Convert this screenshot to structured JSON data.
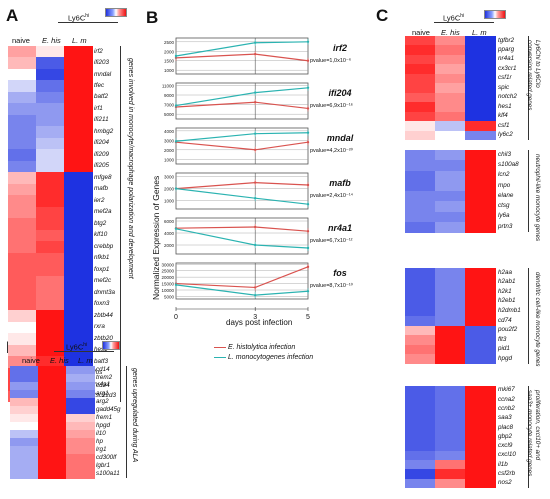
{
  "panels": {
    "A": {
      "label": "A",
      "header_group": "Ly6C",
      "header_group_sup": "hi",
      "columns": [
        "naive",
        "E. his",
        "L. m"
      ],
      "genes": [
        "irf2",
        "ifi203",
        "mndal",
        "tfec",
        "batf2",
        "irf1",
        "ifi211",
        "hmbg2",
        "ifi204",
        "ifi209",
        "ifi205",
        "mfge8",
        "mafb",
        "ier2",
        "mef2a",
        "btg2",
        "klf10",
        "crebbp",
        "nfkb1",
        "foxp1",
        "mef2c",
        "dnmt3a",
        "foxn3",
        "zbtb44",
        "rxra",
        "zbtb20",
        "hes1",
        "batf3",
        "fos",
        "nr4a1",
        "tsc22d3"
      ],
      "annotation": "genes involved in monocyte/macrophage polarization and development"
    },
    "B": {
      "label": "B",
      "y_axis_label": "Normalized Expression of Genes",
      "x_axis_label": "days post infection",
      "legend": [
        "E. histolytica infection",
        "L. monocytogenes infection"
      ]
    },
    "C": {
      "label": "C",
      "header_group": "Ly6C",
      "header_group_sup": "hi",
      "columns": [
        "naive",
        "E. his",
        "L. m"
      ],
      "blocks": [
        {
          "genes": [
            "tgfbr2",
            "pparg",
            "nr4a1",
            "cx3cr1",
            "csf1r",
            "spic",
            "notch2",
            "hes1",
            "klf4",
            "csf1",
            "ly6c2"
          ],
          "annotation_lines": [
            "Ly6Chi to Ly6Clo",
            "conversion related genes"
          ]
        },
        {
          "genes": [
            "chil3",
            "s100a8",
            "lcn2",
            "mpo",
            "elane",
            "ctsg",
            "ly6a",
            "prtn3"
          ],
          "annotation_lines": [
            "neutrophil-like monocyte genes"
          ]
        },
        {
          "genes": [
            "h2aa",
            "h2ab1",
            "h2k1",
            "h2eb1",
            "h2dmb1",
            "cd74",
            "pou2f2",
            "flt3",
            "pid1",
            "hpgd"
          ],
          "annotation_lines": [
            "dendritic cell-like monocyte genes"
          ]
        },
        {
          "genes": [
            "mki67",
            "ccna2",
            "ccnb2",
            "saa3",
            "plac8",
            "gbp2",
            "cxcl9",
            "cxcl10",
            "il1b",
            "csf2rb",
            "nos2"
          ],
          "annotation_lines": [
            "proliferation, cxcl10+ and",
            "saa3+ monocyte related genes"
          ]
        }
      ]
    },
    "D": {
      "label": "D",
      "header_group": "Ly6C",
      "header_group_sup": "hi",
      "columns": [
        "naive",
        "E. his",
        "L. m"
      ],
      "genes": [
        "cd14",
        "trem2",
        "cd24",
        "arg1",
        "arg2",
        "gadd45g",
        "frem1",
        "hpgd",
        "il10",
        "hp",
        "lrg1",
        "cd300lf",
        "lgbr1",
        "s100a11"
      ],
      "annotation": "genes upregulated during ALA"
    }
  },
  "chart_data": [
    {
      "type": "line",
      "gene": "irf2",
      "pvalue_label": "pvalue=1,0x10⁻⁶",
      "x": [
        0,
        3,
        5
      ],
      "yticks": [
        1000,
        1500,
        2000,
        2500
      ],
      "ylim": [
        800,
        2700
      ],
      "series": [
        {
          "name": "E. histolytica infection",
          "color": "#d9534f",
          "values": [
            1650,
            1850,
            1500
          ]
        },
        {
          "name": "L. monocytogenes infection",
          "color": "#2bb3b1",
          "values": [
            1750,
            2450,
            2500
          ]
        }
      ]
    },
    {
      "type": "line",
      "gene": "ifi204",
      "pvalue_label": "pvalue=6,9x10⁻¹⁶",
      "x": [
        0,
        3,
        5
      ],
      "yticks": [
        5000,
        7000,
        9000,
        11000
      ],
      "ylim": [
        4000,
        11500
      ],
      "series": [
        {
          "name": "E. histolytica infection",
          "color": "#d9534f",
          "values": [
            6500,
            7500,
            6200
          ]
        },
        {
          "name": "L. monocytogenes infection",
          "color": "#2bb3b1",
          "values": [
            6800,
            9500,
            10500
          ]
        }
      ]
    },
    {
      "type": "line",
      "gene": "mndal",
      "pvalue_label": "pvalue=4,2x10⁻²⁰",
      "x": [
        0,
        3,
        5
      ],
      "yticks": [
        1000,
        2000,
        3000,
        4000
      ],
      "ylim": [
        500,
        4300
      ],
      "series": [
        {
          "name": "E. histolytica infection",
          "color": "#d9534f",
          "values": [
            2800,
            2000,
            2800
          ]
        },
        {
          "name": "L. monocytogenes infection",
          "color": "#2bb3b1",
          "values": [
            2900,
            3700,
            3800
          ]
        }
      ]
    },
    {
      "type": "line",
      "gene": "mafb",
      "pvalue_label": "pvalue=2,4x10⁻¹⁴",
      "x": [
        0,
        3,
        5
      ],
      "yticks": [
        1000,
        2000,
        3000
      ],
      "ylim": [
        300,
        3300
      ],
      "series": [
        {
          "name": "E. histolytica infection",
          "color": "#d9534f",
          "values": [
            2000,
            2500,
            2300
          ]
        },
        {
          "name": "L. monocytogenes infection",
          "color": "#2bb3b1",
          "values": [
            2000,
            1200,
            700
          ]
        }
      ]
    },
    {
      "type": "line",
      "gene": "nr4a1",
      "pvalue_label": "pvalue=6,7x10⁻¹²",
      "x": [
        0,
        3,
        5
      ],
      "yticks": [
        2000,
        4000,
        6000
      ],
      "ylim": [
        500,
        6500
      ],
      "series": [
        {
          "name": "E. histolytica infection",
          "color": "#d9534f",
          "values": [
            4800,
            5000,
            4300
          ]
        },
        {
          "name": "L. monocytogenes infection",
          "color": "#2bb3b1",
          "values": [
            4700,
            2000,
            1500
          ]
        }
      ]
    },
    {
      "type": "line",
      "gene": "fos",
      "pvalue_label": "pvalue=8,7x10⁻¹⁰",
      "x": [
        0,
        3,
        5
      ],
      "yticks": [
        5000,
        10000,
        15000,
        20000,
        25000,
        30000
      ],
      "ylim": [
        3000,
        31000
      ],
      "series": [
        {
          "name": "E. histolytica infection",
          "color": "#d9534f",
          "values": [
            15000,
            12000,
            28000
          ]
        },
        {
          "name": "L. monocytogenes infection",
          "color": "#2bb3b1",
          "values": [
            14000,
            6000,
            9000
          ]
        }
      ]
    }
  ],
  "x_tick_labels": [
    "0",
    "3",
    "5"
  ],
  "heatmaps": {
    "A": [
      [
        0.4,
        0.1,
        1.0
      ],
      [
        0.3,
        -0.8,
        1.0
      ],
      [
        0.0,
        -0.9,
        1.0
      ],
      [
        -0.2,
        -0.7,
        1.0
      ],
      [
        -0.4,
        -0.6,
        1.0
      ],
      [
        -0.5,
        -0.5,
        1.0
      ],
      [
        -0.6,
        -0.5,
        1.0
      ],
      [
        -0.6,
        -0.4,
        1.0
      ],
      [
        -0.6,
        -0.3,
        1.0
      ],
      [
        -0.7,
        -0.2,
        1.0
      ],
      [
        -0.6,
        -0.2,
        1.0
      ],
      [
        0.3,
        0.9,
        -1.0
      ],
      [
        0.4,
        0.9,
        -1.0
      ],
      [
        0.5,
        0.9,
        -1.0
      ],
      [
        0.5,
        0.8,
        -1.0
      ],
      [
        0.6,
        0.8,
        -1.0
      ],
      [
        0.6,
        0.7,
        -1.0
      ],
      [
        0.6,
        0.8,
        -1.0
      ],
      [
        0.7,
        0.7,
        -1.0
      ],
      [
        0.7,
        0.7,
        -1.0
      ],
      [
        0.7,
        0.6,
        -1.0
      ],
      [
        0.7,
        0.6,
        -1.0
      ],
      [
        0.7,
        0.6,
        -1.0
      ],
      [
        0.2,
        1.0,
        -1.0
      ],
      [
        0.0,
        1.0,
        -1.0
      ],
      [
        0.1,
        1.0,
        -1.0
      ],
      [
        0.3,
        1.0,
        -1.0
      ],
      [
        0.5,
        0.9,
        -1.0
      ],
      [
        0.8,
        0.6,
        -1.0
      ],
      [
        0.8,
        0.7,
        -1.0
      ],
      [
        0.7,
        0.7,
        -1.0
      ]
    ],
    "C": [
      [
        [
          0.8,
          0.5,
          -1.0
        ],
        [
          0.9,
          0.6,
          -1.0
        ],
        [
          0.8,
          0.5,
          -1.0
        ],
        [
          0.9,
          0.4,
          -1.0
        ],
        [
          0.8,
          0.5,
          -1.0
        ],
        [
          0.8,
          0.4,
          -1.0
        ],
        [
          0.7,
          0.5,
          -1.0
        ],
        [
          0.9,
          0.5,
          -1.0
        ],
        [
          0.8,
          0.6,
          -1.0
        ],
        [
          0.1,
          -0.3,
          0.9
        ],
        [
          0.2,
          0.0,
          -0.6
        ]
      ],
      [
        [
          -0.6,
          -0.5,
          1.0
        ],
        [
          -0.6,
          -0.6,
          1.0
        ],
        [
          -0.7,
          -0.5,
          1.0
        ],
        [
          -0.7,
          -0.5,
          1.0
        ],
        [
          -0.6,
          -0.6,
          1.0
        ],
        [
          -0.6,
          -0.5,
          1.0
        ],
        [
          -0.6,
          -0.6,
          1.0
        ],
        [
          -0.7,
          -0.5,
          1.0
        ]
      ],
      [
        [
          -0.8,
          -0.6,
          1.0
        ],
        [
          -0.8,
          -0.6,
          1.0
        ],
        [
          -0.8,
          -0.6,
          1.0
        ],
        [
          -0.8,
          -0.6,
          1.0
        ],
        [
          -0.8,
          -0.6,
          1.0
        ],
        [
          -0.7,
          -0.6,
          1.0
        ],
        [
          0.3,
          1.0,
          -0.8
        ],
        [
          0.5,
          1.0,
          -0.8
        ],
        [
          0.6,
          1.0,
          -0.8
        ],
        [
          0.5,
          1.0,
          -0.8
        ]
      ],
      [
        [
          -0.8,
          -0.7,
          1.0
        ],
        [
          -0.8,
          -0.7,
          1.0
        ],
        [
          -0.8,
          -0.7,
          1.0
        ],
        [
          -0.8,
          -0.7,
          1.0
        ],
        [
          -0.8,
          -0.7,
          1.0
        ],
        [
          -0.8,
          -0.7,
          1.0
        ],
        [
          -0.8,
          -0.7,
          1.0
        ],
        [
          -0.7,
          -0.6,
          1.0
        ],
        [
          -0.6,
          0.6,
          1.0
        ],
        [
          -0.9,
          0.9,
          1.0
        ],
        [
          -0.6,
          0.5,
          1.0
        ]
      ]
    ],
    "D": [
      [
        -0.7,
        1.0,
        -0.5
      ],
      [
        -0.7,
        1.0,
        -0.4
      ],
      [
        -0.5,
        1.0,
        -0.5
      ],
      [
        -0.6,
        1.0,
        -0.6
      ],
      [
        0.3,
        1.0,
        -0.9
      ],
      [
        0.2,
        1.0,
        -0.9
      ],
      [
        0.1,
        1.0,
        0.2
      ],
      [
        0.0,
        1.0,
        0.3
      ],
      [
        -0.3,
        1.0,
        0.4
      ],
      [
        -0.5,
        1.0,
        0.5
      ],
      [
        -0.4,
        1.0,
        0.5
      ],
      [
        -0.4,
        1.0,
        0.6
      ],
      [
        -0.4,
        1.0,
        0.6
      ],
      [
        -0.4,
        1.0,
        0.6
      ]
    ]
  }
}
